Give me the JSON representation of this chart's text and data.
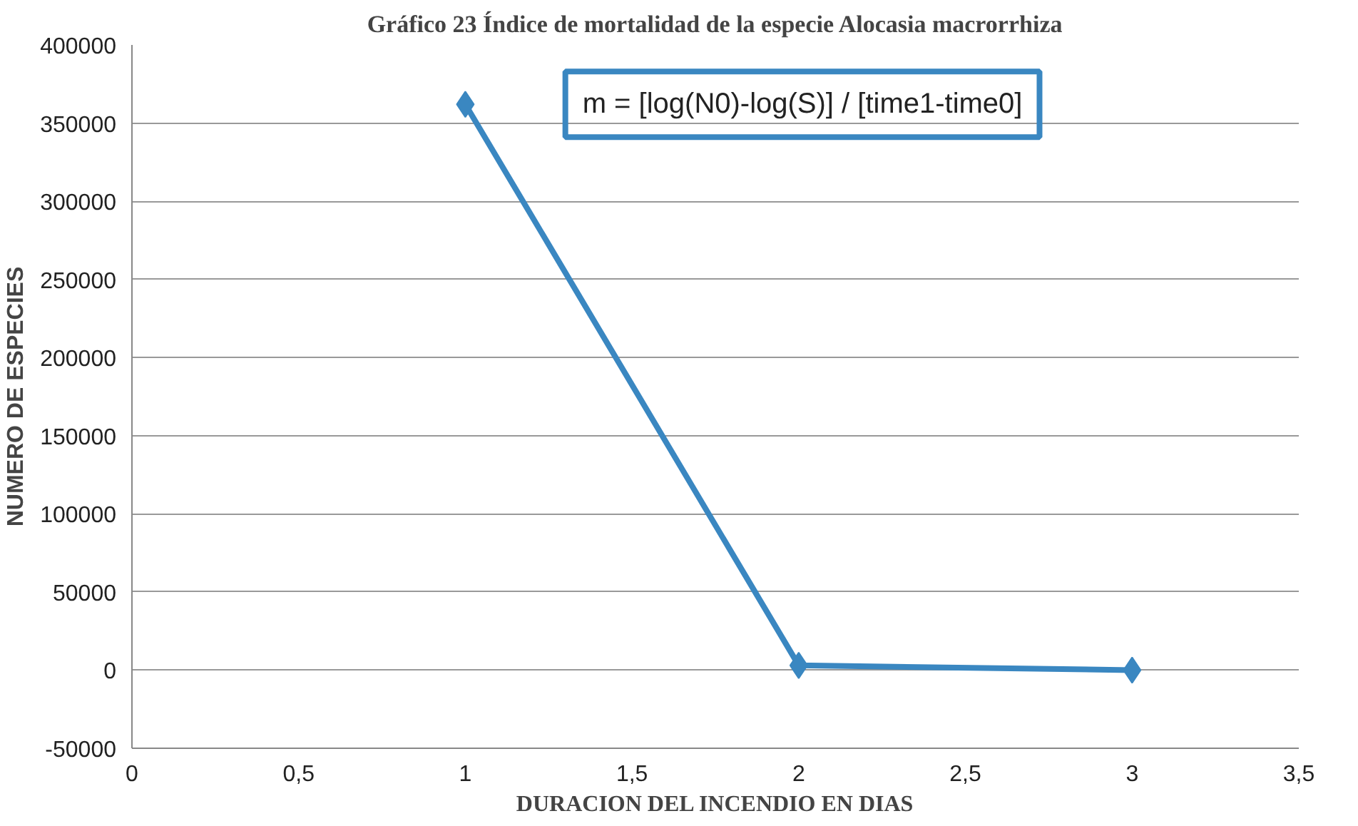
{
  "chart_data": {
    "type": "line",
    "title": "Gráfico 23 Índice de mortalidad de la especie Alocasia macrorrhiza",
    "xlabel": "DURACION DEL INCENDIO EN DIAS",
    "ylabel": "NUMERO DE ESPECIES",
    "x": [
      1,
      2,
      3
    ],
    "series": [
      {
        "color": "#3a87c1",
        "values": [
          362000,
          3000,
          0
        ]
      }
    ],
    "xlim": [
      0,
      3.5
    ],
    "xticks": [
      0,
      {
        "value": 0.5,
        "label": "0,5"
      },
      1,
      {
        "value": 1.5,
        "label": "1,5"
      },
      2,
      {
        "value": 2.5,
        "label": "2,5"
      },
      3,
      {
        "value": 3.5,
        "label": "3,5"
      }
    ],
    "ylim": [
      -50000,
      400000
    ],
    "yticks": [
      -50000,
      0,
      50000,
      100000,
      150000,
      200000,
      250000,
      300000,
      350000,
      400000
    ],
    "grid": "y",
    "marker": "diamond",
    "line_style": "solid",
    "annotations": [
      "m = [log(N0)-log(S)] / [time1-time0]"
    ]
  }
}
